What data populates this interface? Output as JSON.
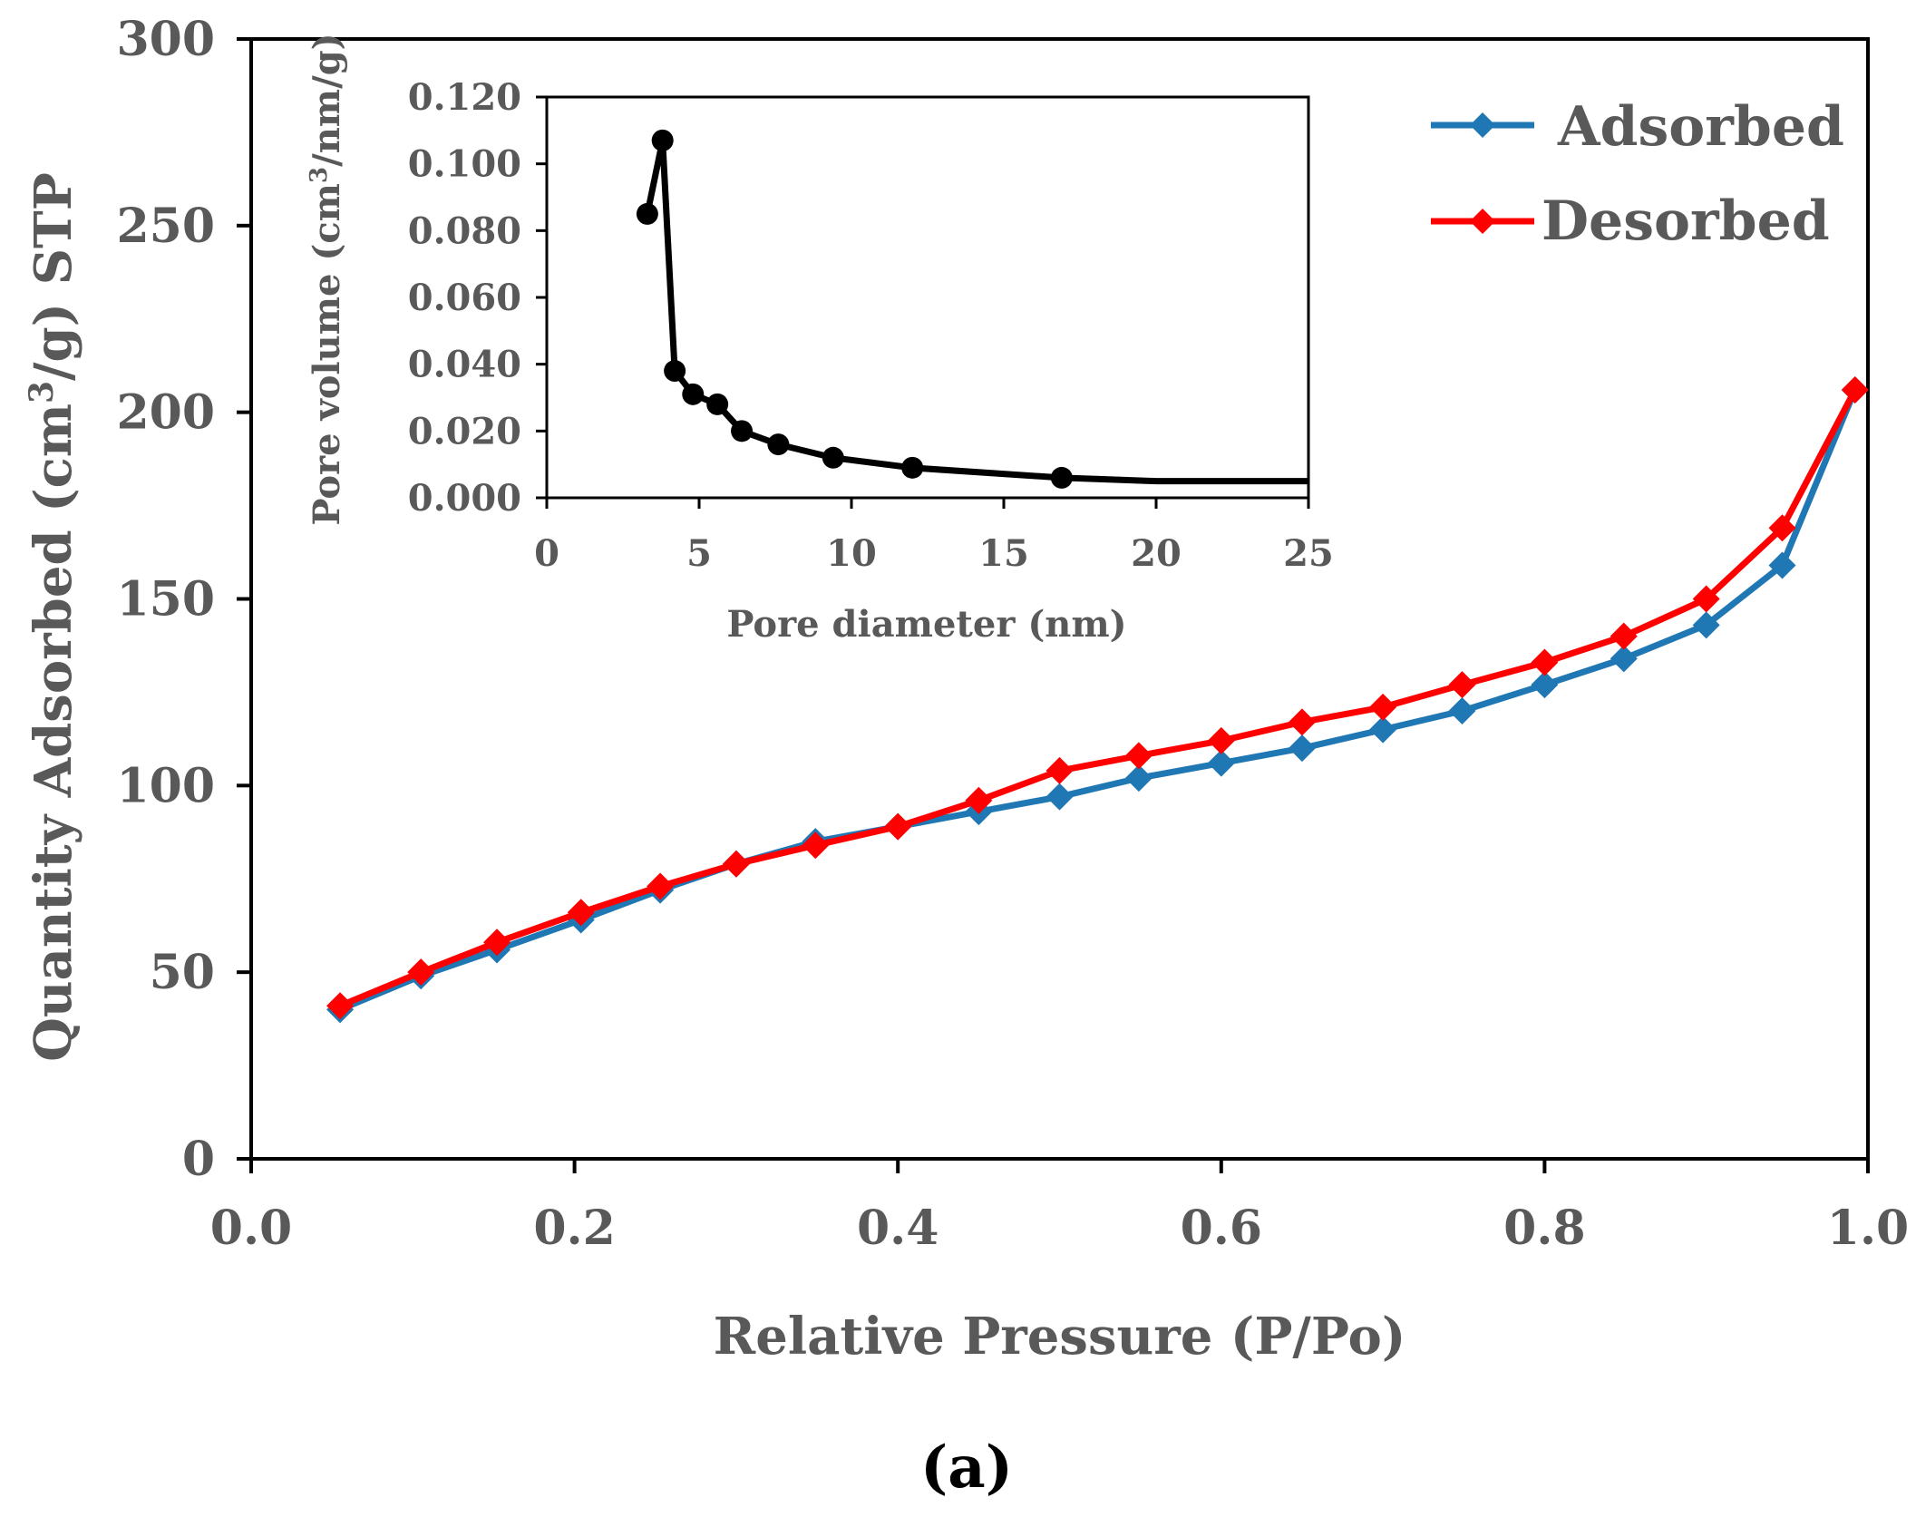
{
  "chart_data": [
    {
      "type": "line",
      "id": "main",
      "xlabel": "Relative Pressure (P/Po)",
      "ylabel_parts": [
        "Quantity Adsorbed (cm",
        "3",
        "/g) STP"
      ],
      "xlim": [
        0,
        1
      ],
      "ylim": [
        0,
        300
      ],
      "xticks": [
        0.0,
        0.2,
        0.4,
        0.6,
        0.8,
        1.0
      ],
      "xtick_labels": [
        "0.0",
        "0.2",
        "0.4",
        "0.6",
        "0.8",
        "1.0"
      ],
      "yticks": [
        0,
        50,
        100,
        150,
        200,
        250,
        300
      ],
      "ytick_labels": [
        "0",
        "50",
        "100",
        "150",
        "200",
        "250",
        "300"
      ],
      "legend_position": "top-right",
      "series": [
        {
          "name": "Adsorbed",
          "color": "#1f77b4",
          "marker": "diamond",
          "x": [
            0.055,
            0.105,
            0.152,
            0.204,
            0.253,
            0.3,
            0.349,
            0.4,
            0.45,
            0.5,
            0.549,
            0.6,
            0.65,
            0.7,
            0.749,
            0.8,
            0.849,
            0.9,
            0.947,
            0.992
          ],
          "values": [
            40,
            49,
            56,
            64,
            72,
            79,
            85,
            89,
            93,
            97,
            102,
            106,
            110,
            115,
            120,
            127,
            134,
            143,
            159,
            206
          ]
        },
        {
          "name": "Desorbed",
          "color": "#ff0000",
          "marker": "diamond",
          "x": [
            0.055,
            0.105,
            0.152,
            0.204,
            0.253,
            0.3,
            0.349,
            0.4,
            0.45,
            0.5,
            0.549,
            0.6,
            0.65,
            0.7,
            0.749,
            0.8,
            0.849,
            0.9,
            0.947,
            0.992
          ],
          "values": [
            41,
            50,
            58,
            66,
            73,
            79,
            84,
            89,
            96,
            104,
            108,
            112,
            117,
            121,
            127,
            133,
            140,
            150,
            169,
            206
          ]
        }
      ]
    },
    {
      "type": "line",
      "id": "inset",
      "xlabel": "Pore diameter (nm)",
      "ylabel_parts": [
        "Pore volume (cm",
        "3",
        "/nm/g)"
      ],
      "xlim": [
        0,
        25
      ],
      "ylim": [
        0,
        0.12
      ],
      "xticks": [
        0,
        5,
        10,
        15,
        20,
        25
      ],
      "xtick_labels": [
        "0",
        "5",
        "10",
        "15",
        "20",
        "25"
      ],
      "yticks": [
        0,
        0.02,
        0.04,
        0.06,
        0.08,
        0.1,
        0.12
      ],
      "ytick_labels": [
        "0.000",
        "0.020",
        "0.040",
        "0.060",
        "0.080",
        "0.100",
        "0.120"
      ],
      "series": [
        {
          "name": "Pore volume",
          "color": "#000000",
          "marker": "circle",
          "marker_x": [
            3.3,
            3.8,
            4.2,
            4.8,
            5.6,
            6.4,
            7.6,
            9.4,
            12.0,
            16.9
          ],
          "marker_values": [
            0.085,
            0.107,
            0.038,
            0.031,
            0.028,
            0.02,
            0.016,
            0.012,
            0.009,
            0.006
          ],
          "line_x": [
            3.3,
            3.8,
            4.2,
            4.8,
            5.6,
            6.4,
            7.6,
            9.4,
            12.0,
            16.9,
            20,
            25
          ],
          "line_values": [
            0.085,
            0.107,
            0.038,
            0.031,
            0.028,
            0.02,
            0.016,
            0.012,
            0.009,
            0.006,
            0.005,
            0.005
          ]
        }
      ]
    }
  ],
  "panel_label": "(a)"
}
